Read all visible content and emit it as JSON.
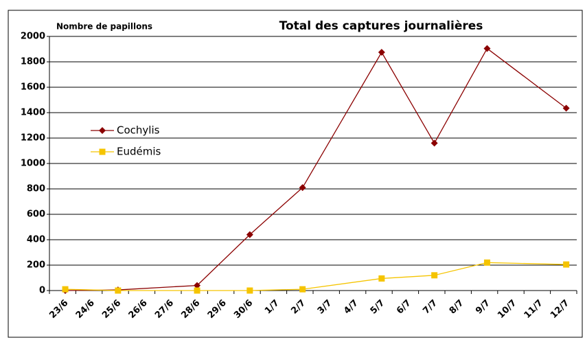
{
  "chart_data": {
    "type": "line",
    "title": "Total des captures journalières",
    "y_label": "Nombre de papillons",
    "categories": [
      "23/6",
      "24/6",
      "25/6",
      "26/6",
      "27/6",
      "28/6",
      "29/6",
      "30/6",
      "1/7",
      "2/7",
      "3/7",
      "4/7",
      "5/7",
      "6/7",
      "7/7",
      "8/7",
      "9/7",
      "10/7",
      "11/7",
      "12/7"
    ],
    "series": [
      {
        "name": "Cochylis",
        "color": "#8b0000",
        "marker": "diamond",
        "values": [
          0,
          null,
          5,
          null,
          null,
          40,
          null,
          440,
          null,
          810,
          null,
          null,
          1875,
          null,
          1160,
          null,
          1905,
          null,
          null,
          1435
        ]
      },
      {
        "name": "Eudémis",
        "color": "#f5c400",
        "marker": "square",
        "values": [
          10,
          null,
          0,
          null,
          null,
          0,
          null,
          0,
          null,
          10,
          null,
          null,
          95,
          null,
          120,
          null,
          220,
          null,
          null,
          205
        ]
      }
    ],
    "ylim": [
      0,
      2000
    ],
    "yticks": [
      0,
      200,
      400,
      600,
      800,
      1000,
      1200,
      1400,
      1600,
      1800,
      2000
    ],
    "grid": true,
    "legend": "left"
  }
}
